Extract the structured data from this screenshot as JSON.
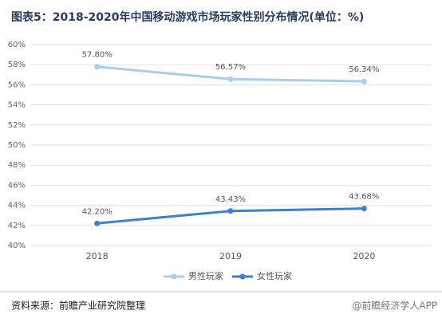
{
  "chart_data": {
    "type": "line",
    "title": "图表5：2018-2020年中国移动游戏市场玩家性别分布情况(单位：%)",
    "categories": [
      "2018",
      "2019",
      "2020"
    ],
    "series": [
      {
        "name": "男性玩家",
        "color": "#a9cdf0",
        "values": [
          57.8,
          56.57,
          56.34
        ],
        "value_labels": [
          "57.80%",
          "56.57%",
          "56.34%"
        ]
      },
      {
        "name": "女性玩家",
        "color": "#3d7fd1",
        "values": [
          42.2,
          43.43,
          43.68
        ],
        "value_labels": [
          "42.20%",
          "43.43%",
          "43.68%"
        ]
      }
    ],
    "ylim": [
      40,
      60
    ],
    "yticks": [
      {
        "value": 40,
        "label": "40%"
      },
      {
        "value": 42,
        "label": "42%"
      },
      {
        "value": 44,
        "label": "44%"
      },
      {
        "value": 46,
        "label": "46%"
      },
      {
        "value": 48,
        "label": "48%"
      },
      {
        "value": 50,
        "label": "50%"
      },
      {
        "value": 52,
        "label": "52%"
      },
      {
        "value": 54,
        "label": "54%"
      },
      {
        "value": 56,
        "label": "56%"
      },
      {
        "value": 58,
        "label": "58%"
      },
      {
        "value": 60,
        "label": "60%"
      }
    ],
    "grid": true,
    "legend": "bottom",
    "source": "资料来源：前瞻产业研究院整理",
    "credit": "@前瞻经济学人APP"
  }
}
